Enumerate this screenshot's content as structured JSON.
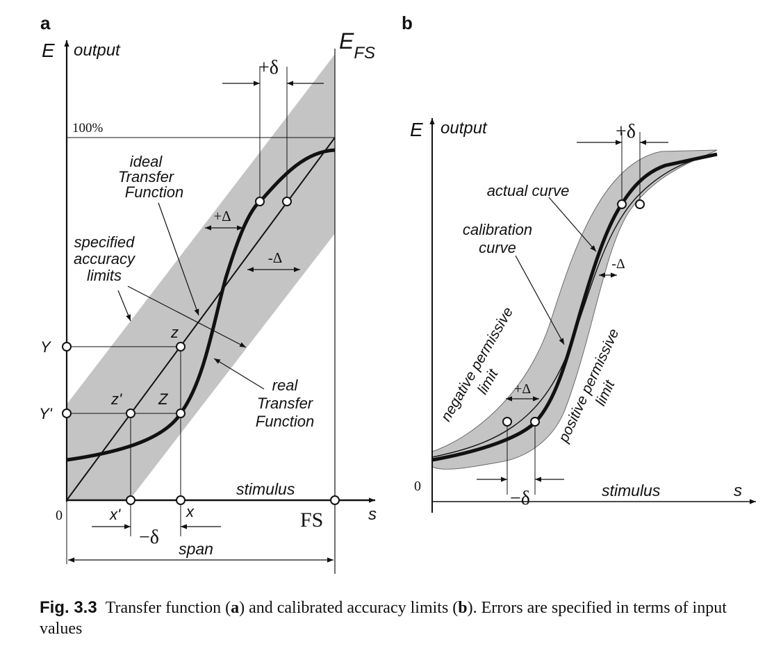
{
  "panel_a": {
    "letter": "a",
    "axis_E": "E",
    "axis_output": "output",
    "E_FS": "E",
    "E_FS_sub": "FS",
    "percent_100": "100%",
    "plus_delta": "+δ",
    "ideal_l1": "ideal",
    "ideal_l2": "Transfer",
    "ideal_l3": "Function",
    "plus_Delta": "+Δ",
    "minus_Delta": "-Δ",
    "specified_l1": "specified",
    "specified_l2": "accuracy",
    "specified_l3": "limits",
    "Y": "Y",
    "Y_prime": "Y'",
    "z": "z",
    "z_prime": "z'",
    "Z": "Z",
    "real_l1": "real",
    "real_l2": "Transfer",
    "real_l3": "Function",
    "stimulus": "stimulus",
    "zero": "0",
    "x_prime": "x'",
    "x": "x",
    "FS": "FS",
    "s": "s",
    "minus_delta": "−δ",
    "span": "span"
  },
  "panel_b": {
    "letter": "b",
    "axis_E": "E",
    "axis_output": "output",
    "plus_delta": "+δ",
    "actual_curve": "actual curve",
    "calibration_l1": "calibration",
    "calibration_l2": "curve",
    "minus_Delta": "-Δ",
    "negative_l1": "negative permissive",
    "negative_l2": "limit",
    "positive_l1": "positive permissive",
    "positive_l2": "limit",
    "plus_Delta": "+Δ",
    "zero": "0",
    "minus_delta": "−δ",
    "stimulus": "stimulus",
    "s": "s"
  },
  "caption": {
    "fig_number": "Fig. 3.3",
    "text_1": "Transfer function (",
    "a": "a",
    "text_2": ") and calibrated accuracy limits (",
    "b": "b",
    "text_3": "). Errors are specified in terms of input values"
  },
  "colors": {
    "band": "#c4c4c4",
    "line": "#111111"
  }
}
